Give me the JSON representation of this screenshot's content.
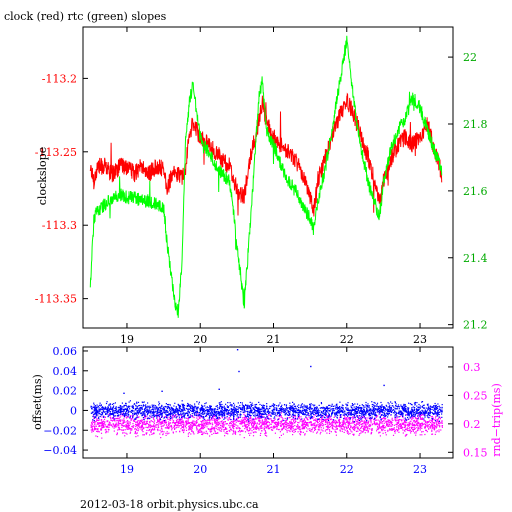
{
  "chart_data": [
    {
      "type": "line",
      "title": "clock (red) rtc (green) slopes",
      "ylabel": "clockslope",
      "xlim": [
        18.4,
        23.45
      ],
      "ylim": [
        -113.37,
        -113.165
      ],
      "y2lim": [
        21.19,
        22.09
      ],
      "x_ticks": [
        "19",
        "20",
        "21",
        "22",
        "23"
      ],
      "y_ticks": [
        "-113.2",
        "-113.25",
        "-113.3",
        "-113.35"
      ],
      "y2_ticks": [
        "22",
        "21.8",
        "21.6",
        "21.4",
        "21.2"
      ],
      "grid": false,
      "series": [
        {
          "color": "#ff0000",
          "axis": "left",
          "x": [
            18.5,
            18.55,
            18.6,
            18.7,
            18.8,
            18.9,
            19.0,
            19.1,
            19.2,
            19.3,
            19.4,
            19.5,
            19.55,
            19.6,
            19.65,
            19.7,
            19.75,
            19.8,
            19.85,
            19.9,
            20.0,
            20.1,
            20.2,
            20.3,
            20.4,
            20.45,
            20.5,
            20.55,
            20.6,
            20.7,
            20.8,
            20.85,
            20.9,
            21.0,
            21.1,
            21.2,
            21.3,
            21.4,
            21.5,
            21.55,
            21.6,
            21.7,
            21.8,
            21.9,
            22.0,
            22.1,
            22.2,
            22.3,
            22.4,
            22.45,
            22.5,
            22.6,
            22.7,
            22.8,
            22.9,
            23.0,
            23.1,
            23.2,
            23.3
          ],
          "values": [
            -113.26,
            -113.27,
            -113.26,
            -113.26,
            -113.265,
            -113.26,
            -113.26,
            -113.265,
            -113.26,
            -113.265,
            -113.26,
            -113.262,
            -113.275,
            -113.268,
            -113.265,
            -113.265,
            -113.268,
            -113.26,
            -113.24,
            -113.23,
            -113.24,
            -113.245,
            -113.25,
            -113.255,
            -113.26,
            -113.27,
            -113.275,
            -113.28,
            -113.28,
            -113.25,
            -113.23,
            -113.215,
            -113.23,
            -113.24,
            -113.245,
            -113.25,
            -113.255,
            -113.265,
            -113.28,
            -113.29,
            -113.27,
            -113.255,
            -113.24,
            -113.225,
            -113.215,
            -113.225,
            -113.24,
            -113.255,
            -113.275,
            -113.285,
            -113.27,
            -113.255,
            -113.245,
            -113.24,
            -113.245,
            -113.24,
            -113.23,
            -113.25,
            -113.265
          ]
        },
        {
          "color": "#00ff00",
          "axis": "right",
          "x": [
            18.5,
            18.55,
            18.6,
            18.7,
            18.8,
            18.9,
            19.0,
            19.1,
            19.2,
            19.3,
            19.4,
            19.5,
            19.55,
            19.6,
            19.65,
            19.7,
            19.75,
            19.8,
            19.85,
            19.9,
            20.0,
            20.1,
            20.2,
            20.3,
            20.4,
            20.45,
            20.5,
            20.55,
            20.6,
            20.7,
            20.8,
            20.85,
            20.9,
            21.0,
            21.1,
            21.2,
            21.3,
            21.4,
            21.5,
            21.55,
            21.6,
            21.7,
            21.8,
            21.9,
            22.0,
            22.1,
            22.2,
            22.3,
            22.4,
            22.45,
            22.5,
            22.6,
            22.7,
            22.8,
            22.9,
            23.0,
            23.1,
            23.2,
            23.3
          ],
          "values": [
            21.32,
            21.52,
            21.54,
            21.56,
            21.58,
            21.59,
            21.58,
            21.58,
            21.57,
            21.57,
            21.56,
            21.55,
            21.44,
            21.35,
            21.27,
            21.24,
            21.38,
            21.75,
            21.86,
            21.92,
            21.76,
            21.72,
            21.68,
            21.65,
            21.63,
            21.55,
            21.44,
            21.35,
            21.26,
            21.55,
            21.88,
            21.93,
            21.78,
            21.74,
            21.68,
            21.63,
            21.6,
            21.55,
            21.52,
            21.48,
            21.56,
            21.66,
            21.78,
            21.92,
            22.05,
            21.86,
            21.72,
            21.62,
            21.55,
            21.52,
            21.62,
            21.72,
            21.78,
            21.82,
            21.88,
            21.85,
            21.78,
            21.72,
            21.66
          ]
        }
      ]
    },
    {
      "type": "scatter",
      "ylabel": "offset(ms)",
      "y2label": "rnd−trip(ms)",
      "xlim": [
        18.4,
        23.45
      ],
      "ylim": [
        -0.048,
        0.064
      ],
      "y2lim": [
        0.14,
        0.335
      ],
      "x_ticks": [
        "19",
        "20",
        "21",
        "22",
        "23"
      ],
      "y_ticks": [
        "0.06",
        "0.04",
        "0.02",
        "0",
        "−0.02",
        "−0.04"
      ],
      "y2_ticks": [
        "0.3",
        "0.25",
        "0.2",
        "0.15"
      ],
      "grid": false,
      "series": [
        {
          "color": "#0000ff",
          "axis": "left",
          "x_range": [
            18.5,
            23.3
          ],
          "y_center": 0.0,
          "y_spread": 0.008,
          "outliers": [
            {
              "x": 19.47,
              "y": 0.02
            },
            {
              "x": 20.25,
              "y": 0.022
            },
            {
              "x": 20.5,
              "y": 0.062
            },
            {
              "x": 20.52,
              "y": 0.04
            },
            {
              "x": 21.5,
              "y": 0.045
            },
            {
              "x": 22.5,
              "y": 0.026
            },
            {
              "x": 18.95,
              "y": 0.018
            }
          ]
        },
        {
          "color": "#ff00ff",
          "axis": "right",
          "x_range": [
            18.5,
            23.3
          ],
          "y_center": 0.2,
          "y_spread": 0.018
        }
      ]
    }
  ],
  "footer": "2012-03-18 orbit.physics.ubc.ca"
}
